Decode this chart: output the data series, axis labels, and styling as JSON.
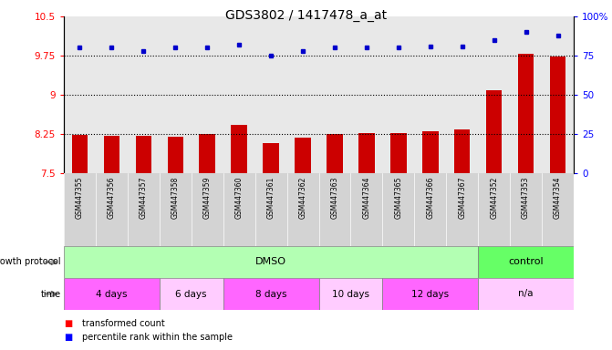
{
  "title": "GDS3802 / 1417478_a_at",
  "samples": [
    "GSM447355",
    "GSM447356",
    "GSM447357",
    "GSM447358",
    "GSM447359",
    "GSM447360",
    "GSM447361",
    "GSM447362",
    "GSM447363",
    "GSM447364",
    "GSM447365",
    "GSM447366",
    "GSM447367",
    "GSM447352",
    "GSM447353",
    "GSM447354"
  ],
  "bar_values": [
    8.24,
    8.22,
    8.22,
    8.2,
    8.25,
    8.42,
    8.07,
    8.18,
    8.25,
    8.27,
    8.27,
    8.3,
    8.34,
    9.08,
    9.78,
    9.73
  ],
  "dot_values_pct": [
    80,
    80,
    78,
    80,
    80,
    82,
    75,
    78,
    80,
    80,
    80,
    81,
    81,
    85,
    90,
    88
  ],
  "ylim_left": [
    7.5,
    10.5
  ],
  "ylim_right": [
    0,
    100
  ],
  "yticks_left": [
    7.5,
    8.25,
    9.0,
    9.75,
    10.5
  ],
  "ytick_labels_left": [
    "7.5",
    "8.25",
    "9",
    "9.75",
    "10.5"
  ],
  "yticks_right": [
    0,
    25,
    50,
    75,
    100
  ],
  "ytick_labels_right": [
    "0",
    "25",
    "50",
    "75",
    "100%"
  ],
  "hlines": [
    8.25,
    9.0,
    9.75
  ],
  "bar_color": "#cc0000",
  "dot_color": "#0000cc",
  "plot_bg_color": "#e8e8e8",
  "growth_protocol_dmso_color": "#b3ffb3",
  "growth_protocol_control_color": "#66ff66",
  "time_color_dark": "#ff66ff",
  "time_color_light": "#ffccff",
  "sample_label_bg": "#d3d3d3",
  "legend_bar_label": "transformed count",
  "legend_dot_label": "percentile rank within the sample",
  "n_samples": 16,
  "dmso_count": 13,
  "time_groups": [
    {
      "label": "4 days",
      "start": 0,
      "end": 3,
      "dark": true
    },
    {
      "label": "6 days",
      "start": 3,
      "end": 5,
      "dark": false
    },
    {
      "label": "8 days",
      "start": 5,
      "end": 8,
      "dark": true
    },
    {
      "label": "10 days",
      "start": 8,
      "end": 10,
      "dark": false
    },
    {
      "label": "12 days",
      "start": 10,
      "end": 13,
      "dark": true
    },
    {
      "label": "n/a",
      "start": 13,
      "end": 16,
      "dark": false
    }
  ]
}
